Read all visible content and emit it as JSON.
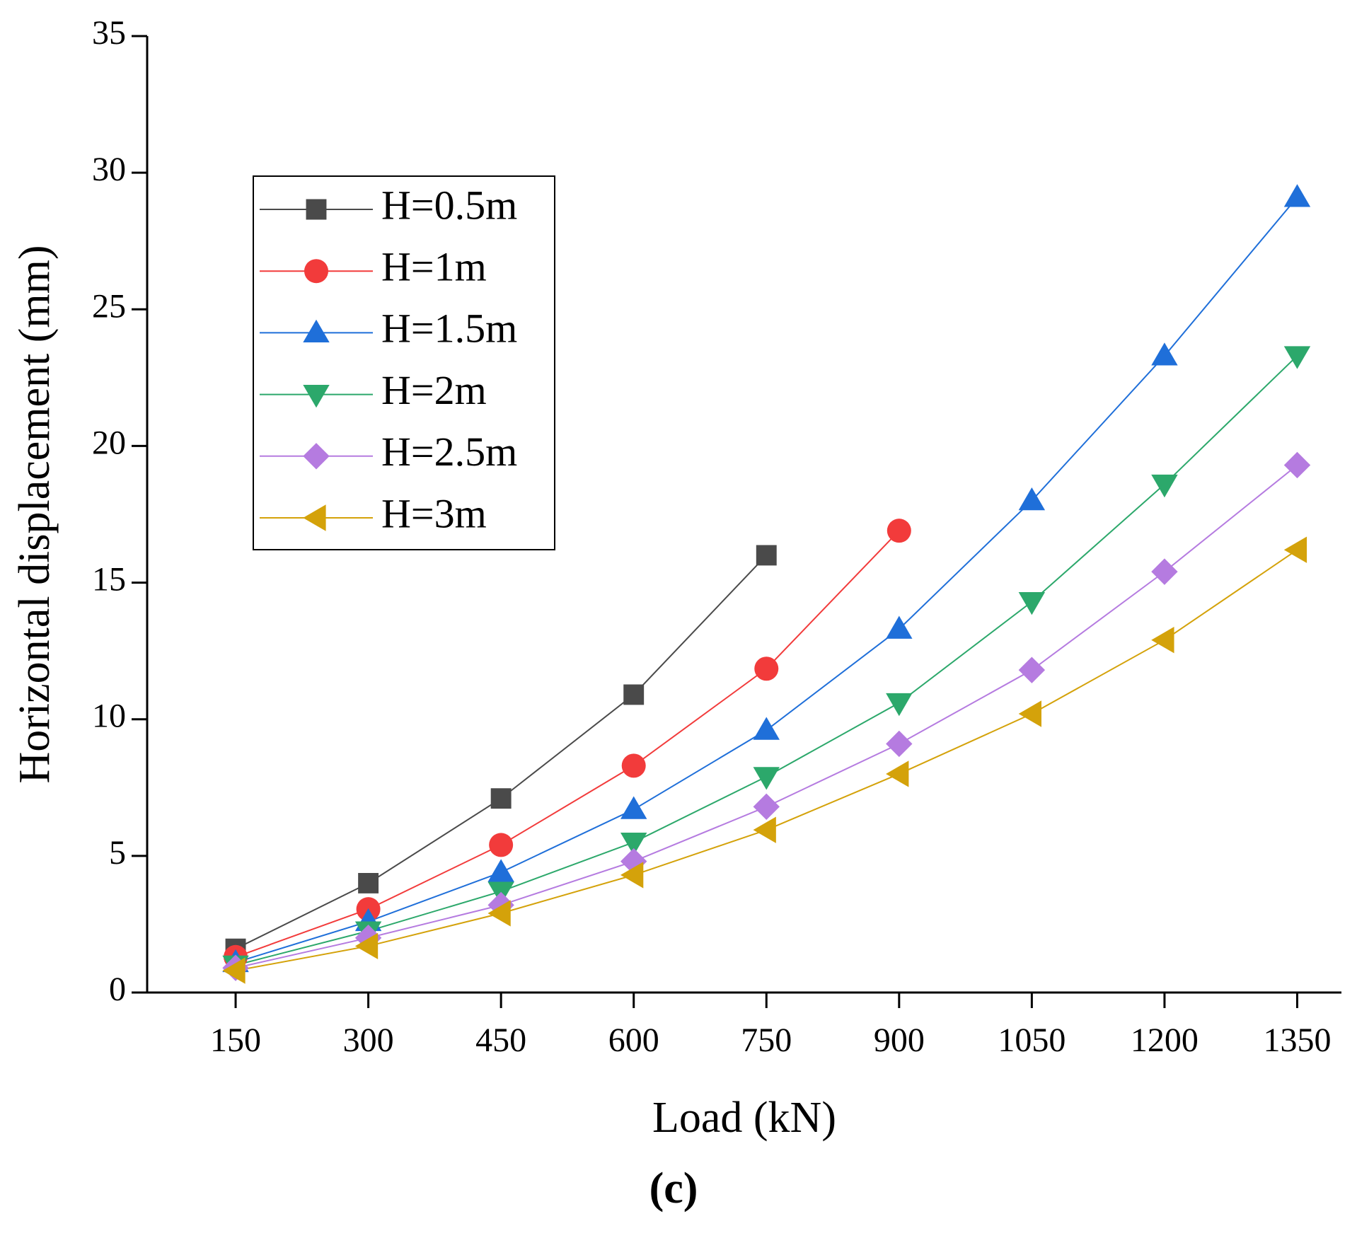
{
  "chart_data": {
    "type": "line",
    "x_label": "Load (kN)",
    "y_label": "Horizontal displacement (mm)",
    "caption": "(c)",
    "x": [
      150,
      300,
      450,
      600,
      750,
      900,
      1050,
      1200,
      1350
    ],
    "xlim": [
      50,
      1400
    ],
    "xticks": [
      150,
      300,
      450,
      600,
      750,
      900,
      1050,
      1200,
      1350
    ],
    "ylim": [
      0,
      35
    ],
    "yticks": [
      0,
      5,
      10,
      15,
      20,
      25,
      30,
      35
    ],
    "series": [
      {
        "name": "H=0.5m",
        "color": "#4a4a4a",
        "marker": "square",
        "values": [
          1.6,
          4.0,
          7.1,
          10.9,
          16.0,
          null,
          null,
          null,
          null
        ]
      },
      {
        "name": "H=1m",
        "color": "#f23b3b",
        "marker": "circle",
        "values": [
          1.3,
          3.05,
          5.4,
          8.3,
          11.85,
          16.9,
          null,
          null,
          null
        ]
      },
      {
        "name": "H=1.5m",
        "color": "#1f6fd9",
        "marker": "triangle-up",
        "values": [
          1.1,
          2.6,
          4.4,
          6.7,
          9.6,
          13.3,
          18.0,
          23.3,
          29.1
        ]
      },
      {
        "name": "H=2m",
        "color": "#2ca86b",
        "marker": "triangle-down",
        "values": [
          1.0,
          2.25,
          3.7,
          5.5,
          7.9,
          10.6,
          14.3,
          18.6,
          23.3
        ]
      },
      {
        "name": "H=2.5m",
        "color": "#b57be0",
        "marker": "diamond",
        "values": [
          0.9,
          2.0,
          3.2,
          4.8,
          6.8,
          9.1,
          11.8,
          15.4,
          19.3
        ]
      },
      {
        "name": "H=3m",
        "color": "#d4a20a",
        "marker": "triangle-left",
        "values": [
          0.8,
          1.7,
          2.9,
          4.3,
          5.95,
          8.0,
          10.2,
          12.9,
          16.2
        ]
      }
    ]
  }
}
